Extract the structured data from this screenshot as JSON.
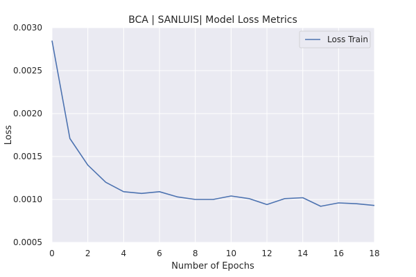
{
  "chart_data": {
    "type": "line",
    "title": "BCA | SANLUIS| Model Loss Metrics",
    "xlabel": "Number of Epochs",
    "ylabel": "Loss",
    "xlim": [
      0,
      18
    ],
    "ylim": [
      0.0005,
      0.003
    ],
    "xticks": [
      0,
      2,
      4,
      6,
      8,
      10,
      12,
      14,
      16,
      18
    ],
    "xtick_labels": [
      "0",
      "2",
      "4",
      "6",
      "8",
      "10",
      "12",
      "14",
      "16",
      "18"
    ],
    "yticks": [
      0.0005,
      0.001,
      0.0015,
      0.002,
      0.0025,
      0.003
    ],
    "ytick_labels": [
      "0.0005",
      "0.0010",
      "0.0015",
      "0.0020",
      "0.0025",
      "0.0030"
    ],
    "grid": true,
    "legend_position": "top-right",
    "series": [
      {
        "name": "Loss Train",
        "color": "#4c72b0",
        "x": [
          0,
          1,
          2,
          3,
          4,
          5,
          6,
          7,
          8,
          9,
          10,
          11,
          12,
          13,
          14,
          15,
          16,
          17,
          18
        ],
        "y": [
          0.00285,
          0.00171,
          0.0014,
          0.0012,
          0.00109,
          0.00107,
          0.00109,
          0.00103,
          0.001,
          0.001,
          0.00104,
          0.00101,
          0.00094,
          0.00101,
          0.00102,
          0.00092,
          0.00096,
          0.00095,
          0.00093
        ]
      }
    ],
    "colors": {
      "plot_bg": "#eaeaf2",
      "grid": "#ffffff"
    }
  }
}
